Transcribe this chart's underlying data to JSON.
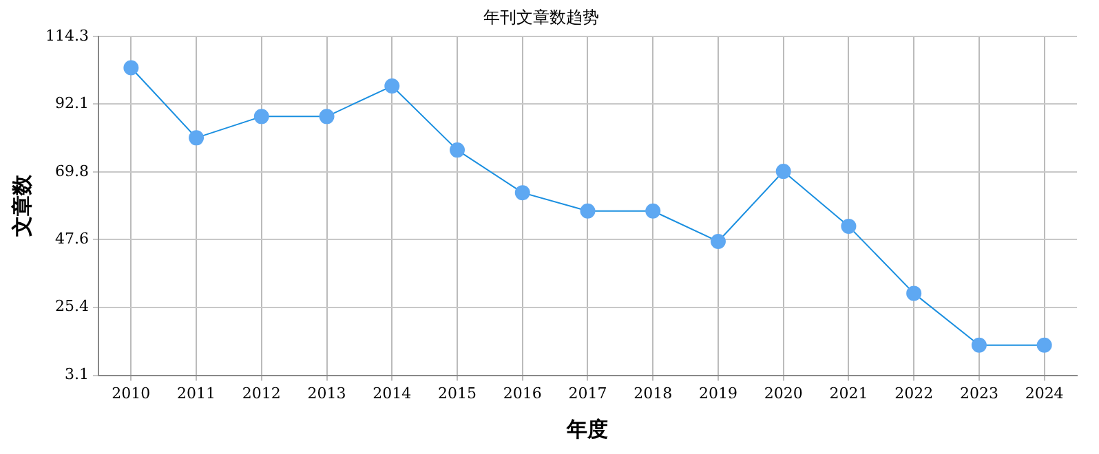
{
  "chart_data": {
    "type": "line",
    "title": "年刊文章数趋势",
    "xlabel": "年度",
    "ylabel": "文章数",
    "categories": [
      "2010",
      "2011",
      "2012",
      "2013",
      "2014",
      "2015",
      "2016",
      "2017",
      "2018",
      "2019",
      "2020",
      "2021",
      "2022",
      "2023",
      "2024"
    ],
    "series": [
      {
        "color": "#1a8fe0",
        "values": [
          104,
          81,
          88,
          88,
          98,
          77,
          63,
          57,
          57,
          47,
          70,
          52,
          30,
          13,
          13
        ]
      }
    ],
    "ylim": [
      3.1,
      114.3
    ],
    "yticks": [
      3.1,
      25.4,
      47.6,
      69.8,
      92.1,
      114.3
    ],
    "grid": true,
    "marker": "circle",
    "legend": false
  }
}
